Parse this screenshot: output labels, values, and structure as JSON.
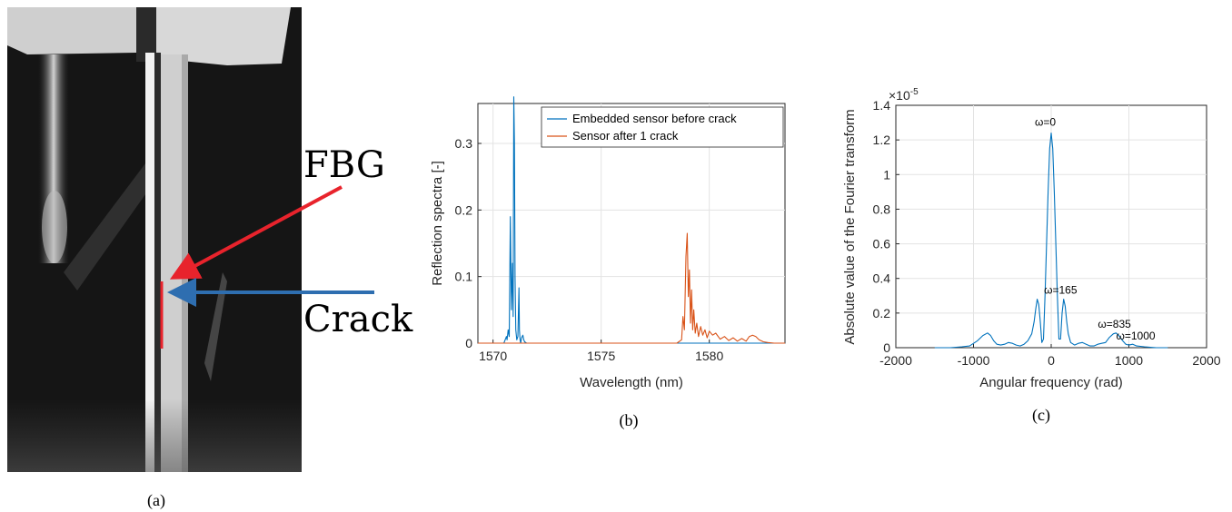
{
  "panel_a": {
    "label_fbg": "FBG",
    "label_crack": "Crack",
    "caption": "(a)"
  },
  "panel_b": {
    "caption": "(b)"
  },
  "panel_c": {
    "caption": "(c)",
    "exponent": "×10",
    "exponent_power": "-5"
  },
  "colors": {
    "series1": "#0072bd",
    "series2": "#d95319",
    "arrow_fbg": "#e8232c",
    "arrow_crack": "#2e6eb0",
    "crack_line": "#e8232c"
  },
  "chart_data": [
    {
      "type": "line",
      "xlabel": "Wavelength (nm)",
      "ylabel": "Reflection spectra [-]",
      "xlim": [
        1569.3,
        1583.5
      ],
      "ylim": [
        0,
        0.36
      ],
      "xticks": [
        1570,
        1575,
        1580
      ],
      "yticks": [
        0,
        0.1,
        0.2,
        0.3
      ],
      "ytick_labels": [
        "0",
        "0.1",
        "0.2",
        "0.3"
      ],
      "legend_position": "top-right",
      "grid": true,
      "series": [
        {
          "name": "Embedded sensor before crack",
          "x": [
            1569.3,
            1570.5,
            1570.62,
            1570.65,
            1570.7,
            1570.75,
            1570.8,
            1570.85,
            1570.9,
            1570.93,
            1570.96,
            1570.99,
            1571.02,
            1571.05,
            1571.1,
            1571.15,
            1571.2,
            1571.22,
            1571.25,
            1571.28,
            1571.32,
            1571.38,
            1571.42,
            1571.46,
            1571.55,
            1572.0,
            1583.5
          ],
          "y": [
            0,
            0,
            0.01,
            0.005,
            0.02,
            0.01,
            0.19,
            0.05,
            0.12,
            0.04,
            0.37,
            0.3,
            0.1,
            0.02,
            0.005,
            0.01,
            0.083,
            0.02,
            0.005,
            0.0,
            0.008,
            0.012,
            0.005,
            0.002,
            0,
            0,
            0
          ]
        },
        {
          "name": "Sensor after 1 crack",
          "x": [
            1569.3,
            1578.5,
            1578.72,
            1578.78,
            1578.85,
            1578.92,
            1578.98,
            1579.03,
            1579.08,
            1579.13,
            1579.18,
            1579.23,
            1579.28,
            1579.35,
            1579.42,
            1579.5,
            1579.6,
            1579.7,
            1579.8,
            1579.9,
            1580.0,
            1580.15,
            1580.3,
            1580.5,
            1580.7,
            1580.9,
            1581.1,
            1581.3,
            1581.5,
            1581.7,
            1581.85,
            1582.0,
            1582.15,
            1582.3,
            1582.5,
            1582.7,
            1583.0,
            1583.5
          ],
          "y": [
            0,
            0,
            0.005,
            0.04,
            0.02,
            0.13,
            0.165,
            0.07,
            0.11,
            0.03,
            0.08,
            0.02,
            0.05,
            0.015,
            0.03,
            0.01,
            0.025,
            0.012,
            0.02,
            0.008,
            0.018,
            0.012,
            0.015,
            0.006,
            0.01,
            0.004,
            0.008,
            0.003,
            0.007,
            0.003,
            0.01,
            0.012,
            0.01,
            0.005,
            0.002,
            0.001,
            0,
            0
          ]
        }
      ]
    },
    {
      "type": "line",
      "xlabel": "Angular frequency (rad)",
      "ylabel": "Absolute value of the Fourier transform",
      "xlim": [
        -2000,
        2000
      ],
      "ylim": [
        0,
        1.4
      ],
      "xticks": [
        -2000,
        -1000,
        0,
        1000,
        2000
      ],
      "yticks": [
        0,
        0.2,
        0.4,
        0.6,
        0.8,
        1,
        1.2,
        1.4
      ],
      "ytick_labels": [
        "0",
        "0.2",
        "0.4",
        "0.6",
        "0.8",
        "1",
        "1.2",
        "1.4"
      ],
      "y_scale_note": "×10^-5",
      "grid": true,
      "series": [
        {
          "x": [
            -1500,
            -1300,
            -1150,
            -1050,
            -950,
            -880,
            -820,
            -780,
            -740,
            -700,
            -650,
            -600,
            -550,
            -500,
            -450,
            -400,
            -350,
            -300,
            -250,
            -220,
            -200,
            -180,
            -160,
            -140,
            -120,
            -100,
            -80,
            -60,
            -40,
            -20,
            0,
            20,
            40,
            60,
            80,
            100,
            120,
            140,
            160,
            180,
            200,
            220,
            250,
            300,
            350,
            400,
            450,
            500,
            550,
            600,
            650,
            700,
            750,
            800,
            835,
            870,
            920,
            960,
            1000,
            1050,
            1100,
            1200,
            1350,
            1500
          ],
          "y": [
            0,
            0.0,
            0.005,
            0.01,
            0.04,
            0.07,
            0.085,
            0.07,
            0.04,
            0.02,
            0.015,
            0.02,
            0.03,
            0.025,
            0.015,
            0.01,
            0.02,
            0.04,
            0.08,
            0.15,
            0.22,
            0.28,
            0.25,
            0.15,
            0.03,
            0.05,
            0.3,
            0.6,
            0.9,
            1.15,
            1.24,
            1.15,
            0.9,
            0.6,
            0.3,
            0.05,
            0.05,
            0.2,
            0.28,
            0.24,
            0.15,
            0.08,
            0.03,
            0.015,
            0.025,
            0.03,
            0.02,
            0.01,
            0.01,
            0.02,
            0.025,
            0.03,
            0.06,
            0.08,
            0.085,
            0.07,
            0.04,
            0.02,
            0.015,
            0.02,
            0.01,
            0.005,
            0.0,
            0
          ]
        }
      ],
      "annotations": [
        {
          "text": "ω=0",
          "x": 0,
          "y": 1.24
        },
        {
          "text": "ω=165",
          "x": 165,
          "y": 0.28
        },
        {
          "text": "ω=835",
          "x": 835,
          "y": 0.085
        },
        {
          "text": "ω=1000",
          "x": 1000,
          "y": 0.02
        }
      ]
    }
  ]
}
